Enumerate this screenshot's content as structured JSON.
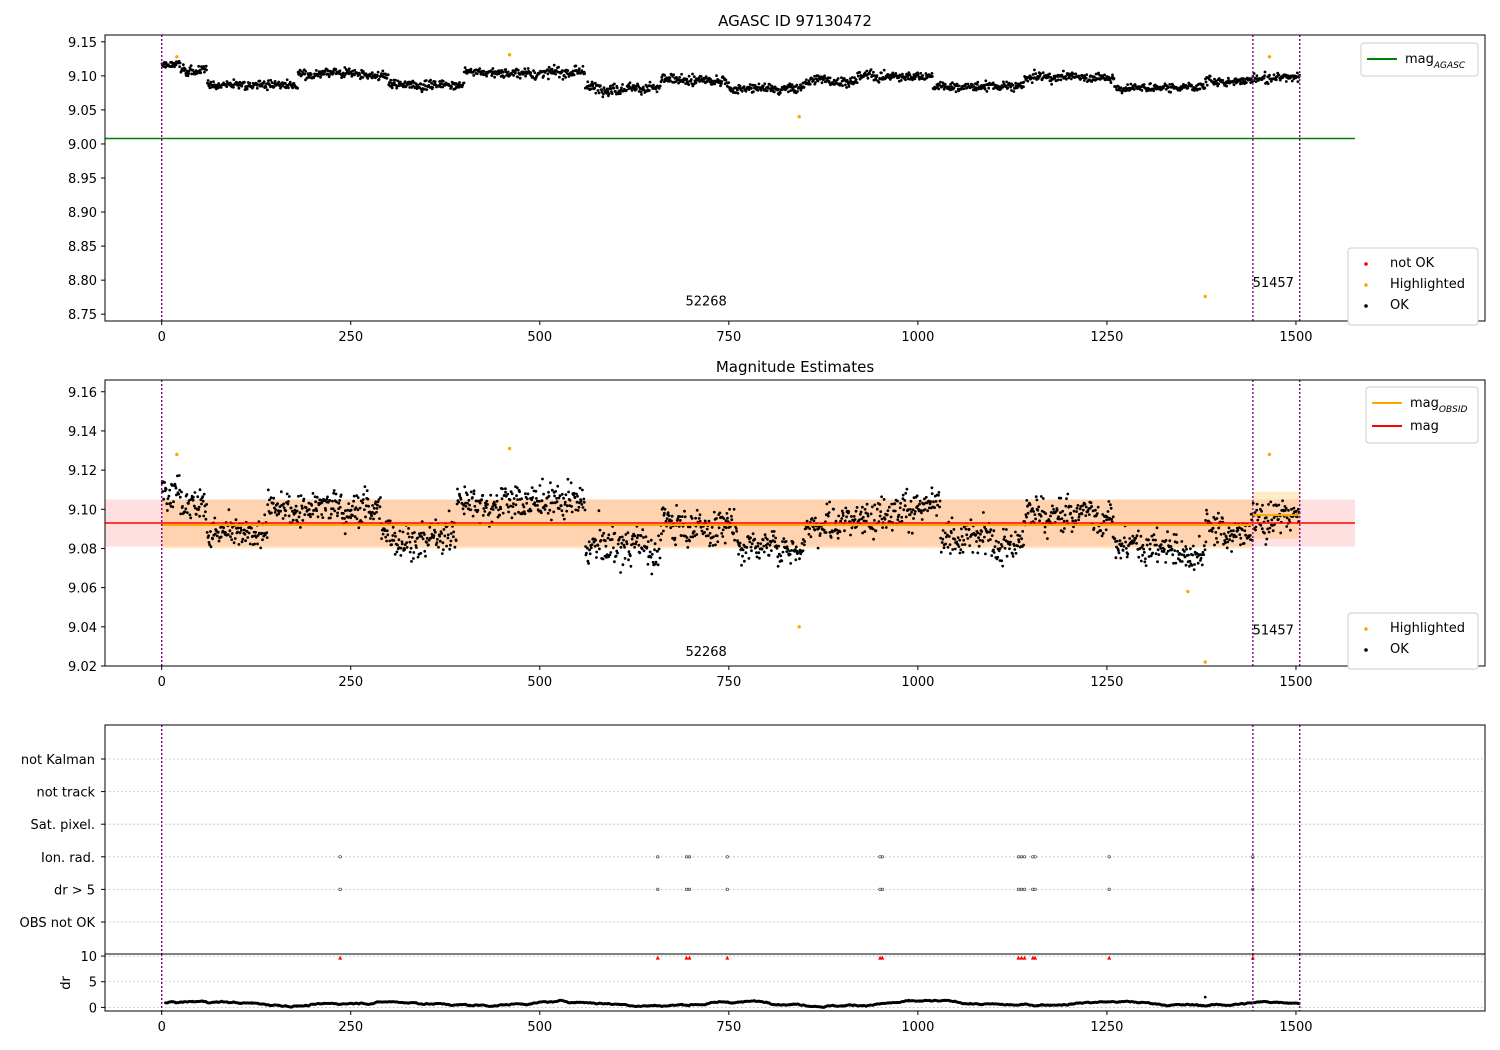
{
  "chart_data": [
    {
      "type": "scatter",
      "title": "AGASC ID 97130472",
      "xlim": [
        -75,
        1750
      ],
      "ylim": [
        8.74,
        9.16
      ],
      "xticks": [
        0,
        250,
        500,
        750,
        1000,
        1250,
        1500
      ],
      "yticks": [
        "8.75",
        "8.80",
        "8.85",
        "8.90",
        "8.95",
        "9.00",
        "9.05",
        "9.10",
        "9.15"
      ],
      "mag_agasc": 9.008,
      "mag_agasc_xrange": [
        -75,
        1578
      ],
      "vlines": [
        0,
        1443,
        1505
      ],
      "legend_lines": [
        {
          "prefix": "mag",
          "sub": "AGASC",
          "color": "#008000"
        }
      ],
      "legend_points": [
        {
          "label": "not OK",
          "color": "#ff0000"
        },
        {
          "label": "Highlighted",
          "color": "#ffa500"
        },
        {
          "label": "OK",
          "color": "#000000"
        }
      ],
      "annotations": [
        {
          "text": "52268",
          "x": 720,
          "y": 8.763
        },
        {
          "text": "51457",
          "x": 1470,
          "y": 8.79
        }
      ],
      "highlighted": [
        {
          "x": 20,
          "y": 9.128
        },
        {
          "x": 460,
          "y": 9.131
        },
        {
          "x": 843,
          "y": 9.04
        },
        {
          "x": 1380,
          "y": 8.776
        },
        {
          "x": 1465,
          "y": 9.128
        }
      ],
      "ok_segments": [
        {
          "x0": 0,
          "x1": 25,
          "center": 9.115,
          "spread": 0.012
        },
        {
          "x0": 25,
          "x1": 60,
          "center": 9.108,
          "spread": 0.014
        },
        {
          "x0": 60,
          "x1": 180,
          "center": 9.088,
          "spread": 0.012
        },
        {
          "x0": 180,
          "x1": 300,
          "center": 9.102,
          "spread": 0.014
        },
        {
          "x0": 300,
          "x1": 400,
          "center": 9.087,
          "spread": 0.014
        },
        {
          "x0": 400,
          "x1": 560,
          "center": 9.105,
          "spread": 0.015
        },
        {
          "x0": 560,
          "x1": 660,
          "center": 9.083,
          "spread": 0.016
        },
        {
          "x0": 660,
          "x1": 750,
          "center": 9.093,
          "spread": 0.016
        },
        {
          "x0": 750,
          "x1": 850,
          "center": 9.082,
          "spread": 0.014
        },
        {
          "x0": 850,
          "x1": 920,
          "center": 9.094,
          "spread": 0.016
        },
        {
          "x0": 920,
          "x1": 1020,
          "center": 9.1,
          "spread": 0.015
        },
        {
          "x0": 1020,
          "x1": 1140,
          "center": 9.084,
          "spread": 0.014
        },
        {
          "x0": 1140,
          "x1": 1260,
          "center": 9.097,
          "spread": 0.015
        },
        {
          "x0": 1260,
          "x1": 1380,
          "center": 9.083,
          "spread": 0.012
        },
        {
          "x0": 1380,
          "x1": 1443,
          "center": 9.093,
          "spread": 0.014
        },
        {
          "x0": 1443,
          "x1": 1505,
          "center": 9.097,
          "spread": 0.014
        }
      ]
    },
    {
      "type": "scatter",
      "title": "Magnitude Estimates",
      "xlim": [
        -75,
        1750
      ],
      "ylim": [
        9.02,
        9.166
      ],
      "xticks": [
        0,
        250,
        500,
        750,
        1000,
        1250,
        1500
      ],
      "yticks": [
        "9.02",
        "9.04",
        "9.06",
        "9.08",
        "9.10",
        "9.12",
        "9.14",
        "9.16"
      ],
      "mag": 9.093,
      "mag_band": [
        9.081,
        9.105
      ],
      "mag_xrange": [
        -75,
        1578
      ],
      "mag_obsid": [
        {
          "x0": 0,
          "x1": 1443,
          "value": 9.092,
          "band": [
            9.08,
            9.105
          ]
        },
        {
          "x0": 1443,
          "x1": 1505,
          "value": 9.097,
          "band": [
            9.085,
            9.109
          ]
        }
      ],
      "vlines": [
        0,
        1443,
        1505
      ],
      "legend_lines": [
        {
          "prefix": "mag",
          "sub": "OBSID",
          "color": "#ffa500"
        },
        {
          "prefix": "mag",
          "sub": "",
          "color": "#ff0000"
        }
      ],
      "legend_points": [
        {
          "label": "Highlighted",
          "color": "#ffa500"
        },
        {
          "label": "OK",
          "color": "#000000"
        }
      ],
      "annotations": [
        {
          "text": "52268",
          "x": 720,
          "y": 9.025
        },
        {
          "text": "51457",
          "x": 1470,
          "y": 9.036
        }
      ],
      "highlighted": [
        {
          "x": 20,
          "y": 9.128
        },
        {
          "x": 460,
          "y": 9.131
        },
        {
          "x": 843,
          "y": 9.04
        },
        {
          "x": 1357,
          "y": 9.058
        },
        {
          "x": 1380,
          "y": 9.022
        },
        {
          "x": 1465,
          "y": 9.128
        }
      ],
      "ok_segments": [
        {
          "x0": 0,
          "x1": 25,
          "center": 9.113,
          "spread": 0.014
        },
        {
          "x0": 25,
          "x1": 60,
          "center": 9.104,
          "spread": 0.016
        },
        {
          "x0": 60,
          "x1": 140,
          "center": 9.087,
          "spread": 0.014
        },
        {
          "x0": 140,
          "x1": 290,
          "center": 9.101,
          "spread": 0.018
        },
        {
          "x0": 290,
          "x1": 390,
          "center": 9.086,
          "spread": 0.018
        },
        {
          "x0": 390,
          "x1": 560,
          "center": 9.104,
          "spread": 0.018
        },
        {
          "x0": 560,
          "x1": 660,
          "center": 9.08,
          "spread": 0.02
        },
        {
          "x0": 660,
          "x1": 760,
          "center": 9.092,
          "spread": 0.02
        },
        {
          "x0": 760,
          "x1": 850,
          "center": 9.081,
          "spread": 0.016
        },
        {
          "x0": 850,
          "x1": 930,
          "center": 9.094,
          "spread": 0.018
        },
        {
          "x0": 930,
          "x1": 1030,
          "center": 9.1,
          "spread": 0.018
        },
        {
          "x0": 1030,
          "x1": 1140,
          "center": 9.083,
          "spread": 0.018
        },
        {
          "x0": 1140,
          "x1": 1260,
          "center": 9.097,
          "spread": 0.018
        },
        {
          "x0": 1260,
          "x1": 1380,
          "center": 9.08,
          "spread": 0.016
        },
        {
          "x0": 1380,
          "x1": 1443,
          "center": 9.09,
          "spread": 0.018
        },
        {
          "x0": 1443,
          "x1": 1505,
          "center": 9.095,
          "spread": 0.018
        }
      ]
    },
    {
      "type": "scatter",
      "title": "",
      "xlim": [
        -75,
        1750
      ],
      "xticks": [
        0,
        250,
        500,
        750,
        1000,
        1250,
        1500
      ],
      "flag_labels": [
        "not Kalman",
        "not track",
        "Sat. pixel.",
        "Ion. rad.",
        "dr > 5",
        "OBS not OK"
      ],
      "flag_points": [
        {
          "flag": "Ion. rad.",
          "x": [
            236,
            656,
            694,
            698,
            748,
            950,
            953,
            1133,
            1137,
            1141,
            1152,
            1155,
            1253,
            1443
          ]
        },
        {
          "flag": "dr > 5",
          "x": [
            236,
            656,
            694,
            698,
            748,
            950,
            953,
            1133,
            1137,
            1141,
            1152,
            1155,
            1253,
            1443
          ]
        }
      ],
      "vlines": [
        0,
        1443,
        1505
      ]
    },
    {
      "type": "scatter",
      "title": "",
      "ylabel": "dr",
      "xlim": [
        -75,
        1750
      ],
      "ylim": [
        -0.7,
        10.4
      ],
      "xticks": [
        0,
        250,
        500,
        750,
        1000,
        1250,
        1500
      ],
      "yticks": [
        "0",
        "5",
        "10"
      ],
      "clipped_markers_x": [
        236,
        656,
        694,
        698,
        748,
        950,
        953,
        1133,
        1137,
        1141,
        1152,
        1155,
        1253,
        1443
      ],
      "dr_outlier": {
        "x": 1380,
        "y": 2.0
      },
      "vlines": [
        0,
        1443,
        1505
      ]
    }
  ]
}
